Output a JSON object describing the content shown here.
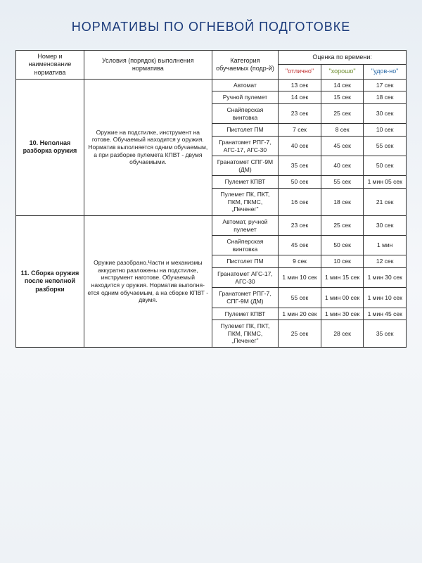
{
  "title": "НОРМАТИВЫ ПО ОГНЕВОЙ ПОДГОТОВКЕ",
  "headers": {
    "number_name": "Номер и наименование норматива",
    "conditions": "Условия (порядок) выполнения норматива",
    "category": "Категория обучаемых (подр-й)",
    "grade_header": "Оценка по времени:",
    "grade_excellent": "\"отлично\"",
    "grade_good": "\"хорошо\"",
    "grade_satis": "\"удов-но\""
  },
  "colors": {
    "title": "#1a3a7a",
    "border": "#333333",
    "grade_excellent": "#c03030",
    "grade_good": "#6a8a2a",
    "grade_satis": "#2a6aa8",
    "bg_top": "#e8eef4",
    "bg_mid": "#f5f7fa"
  },
  "sections": [
    {
      "name": "10. Неполная разборка оружия",
      "conditions": "Оружие на подстилке, инстру­мент на готове. Обучаемый находится у оружия. Норматив выполняется одним обучае­мым, а при разборке пулемета КПВТ - двумя обучаемыми.",
      "rows": [
        {
          "category": "Автомат",
          "excellent": "13 сек",
          "good": "14 сек",
          "satis": "17 сек"
        },
        {
          "category": "Ручной пулемет",
          "excellent": "14 сек",
          "good": "15 сек",
          "satis": "18 сек"
        },
        {
          "category": "Снайперская винтовка",
          "excellent": "23 сек",
          "good": "25 сек",
          "satis": "30 сек"
        },
        {
          "category": "Пистолет ПМ",
          "excellent": "7 сек",
          "good": "8 сек",
          "satis": "10 сек"
        },
        {
          "category": "Гранатомет РПГ-7, АГС-17, АГС-30",
          "excellent": "40 сек",
          "good": "45 сек",
          "satis": "55 сек"
        },
        {
          "category": "Гранатомет СПГ-9М (ДМ)",
          "excellent": "35 сек",
          "good": "40 сек",
          "satis": "50 сек"
        },
        {
          "category": "Пулемет КПВТ",
          "excellent": "50 сек",
          "good": "55 сек",
          "satis": "1 мин 05 сек"
        },
        {
          "category": "Пулемет ПК, ПКТ, ПКМ, ПКМС, „Печенег”",
          "excellent": "16 сек",
          "good": "18 сек",
          "satis": "21 сек"
        }
      ]
    },
    {
      "name": "11. Сборка оружия после неполной разборки",
      "conditions": "Оружие разобрано.Части и ме­ханизмы аккуратно разложены на подстилке, инструмент на­готове. Обучаемый находится у оружия. Норматив выполня­ется одним обучаемым, а на сборке КПВТ - двумя.",
      "rows": [
        {
          "category": "Автомат, ручной пулемет",
          "excellent": "23 сек",
          "good": "25 сек",
          "satis": "30 сек"
        },
        {
          "category": "Снайперская винтовка",
          "excellent": "45 сек",
          "good": "50 сек",
          "satis": "1 мин"
        },
        {
          "category": "Пистолет ПМ",
          "excellent": "9 сек",
          "good": "10 сек",
          "satis": "12 сек"
        },
        {
          "category": "Гранатомет АГС-17, АГС-30",
          "excellent": "1 мин 10 сек",
          "good": "1 мин 15 сек",
          "satis": "1 мин 30 сек"
        },
        {
          "category": "Гранатомет РПГ-7, СПГ-9М (ДМ)",
          "excellent": "55 сек",
          "good": "1 мин 00 сек",
          "satis": "1 мин 10 сек"
        },
        {
          "category": "Пулемет КПВТ",
          "excellent": "1 мин 20 сек",
          "good": "1 мин 30 сек",
          "satis": "1 мин 45 сек"
        },
        {
          "category": "Пулемет ПК, ПКТ, ПКМ, ПКМС, „Печенег”",
          "excellent": "25 сек",
          "good": "28 сек",
          "satis": "35 сек"
        }
      ]
    }
  ]
}
